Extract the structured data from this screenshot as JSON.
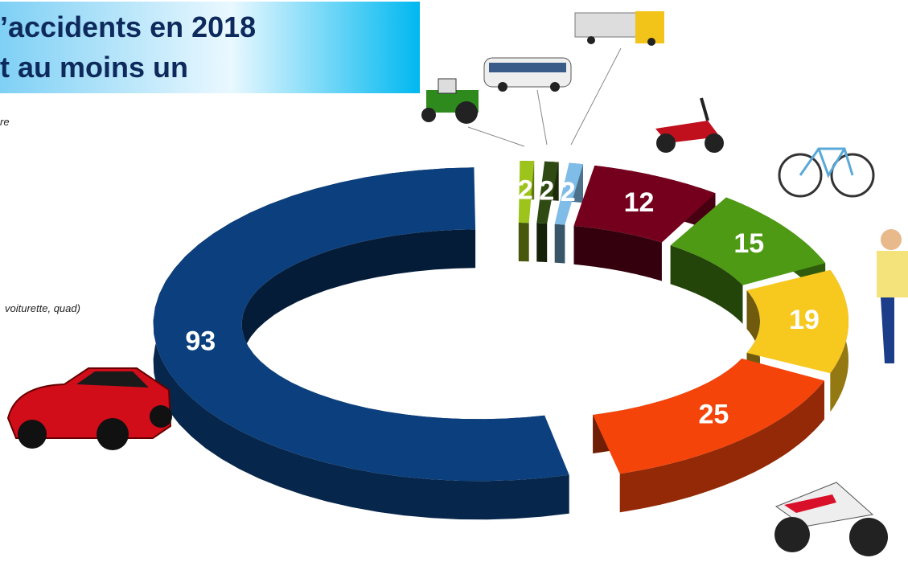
{
  "header": {
    "title_lines": [
      "’accidents en 2018",
      "t au moins un"
    ]
  },
  "fragments": [
    "re",
    "voiturette, quad)"
  ],
  "chart_data": {
    "type": "donut",
    "values": [
      2,
      2,
      2,
      12,
      15,
      19,
      25,
      93
    ],
    "colors": [
      "#9dc41a",
      "#2f4a12",
      "#7fbde8",
      "#75001d",
      "#4f9a14",
      "#f7c81e",
      "#f5440a",
      "#0b3f7d"
    ]
  }
}
